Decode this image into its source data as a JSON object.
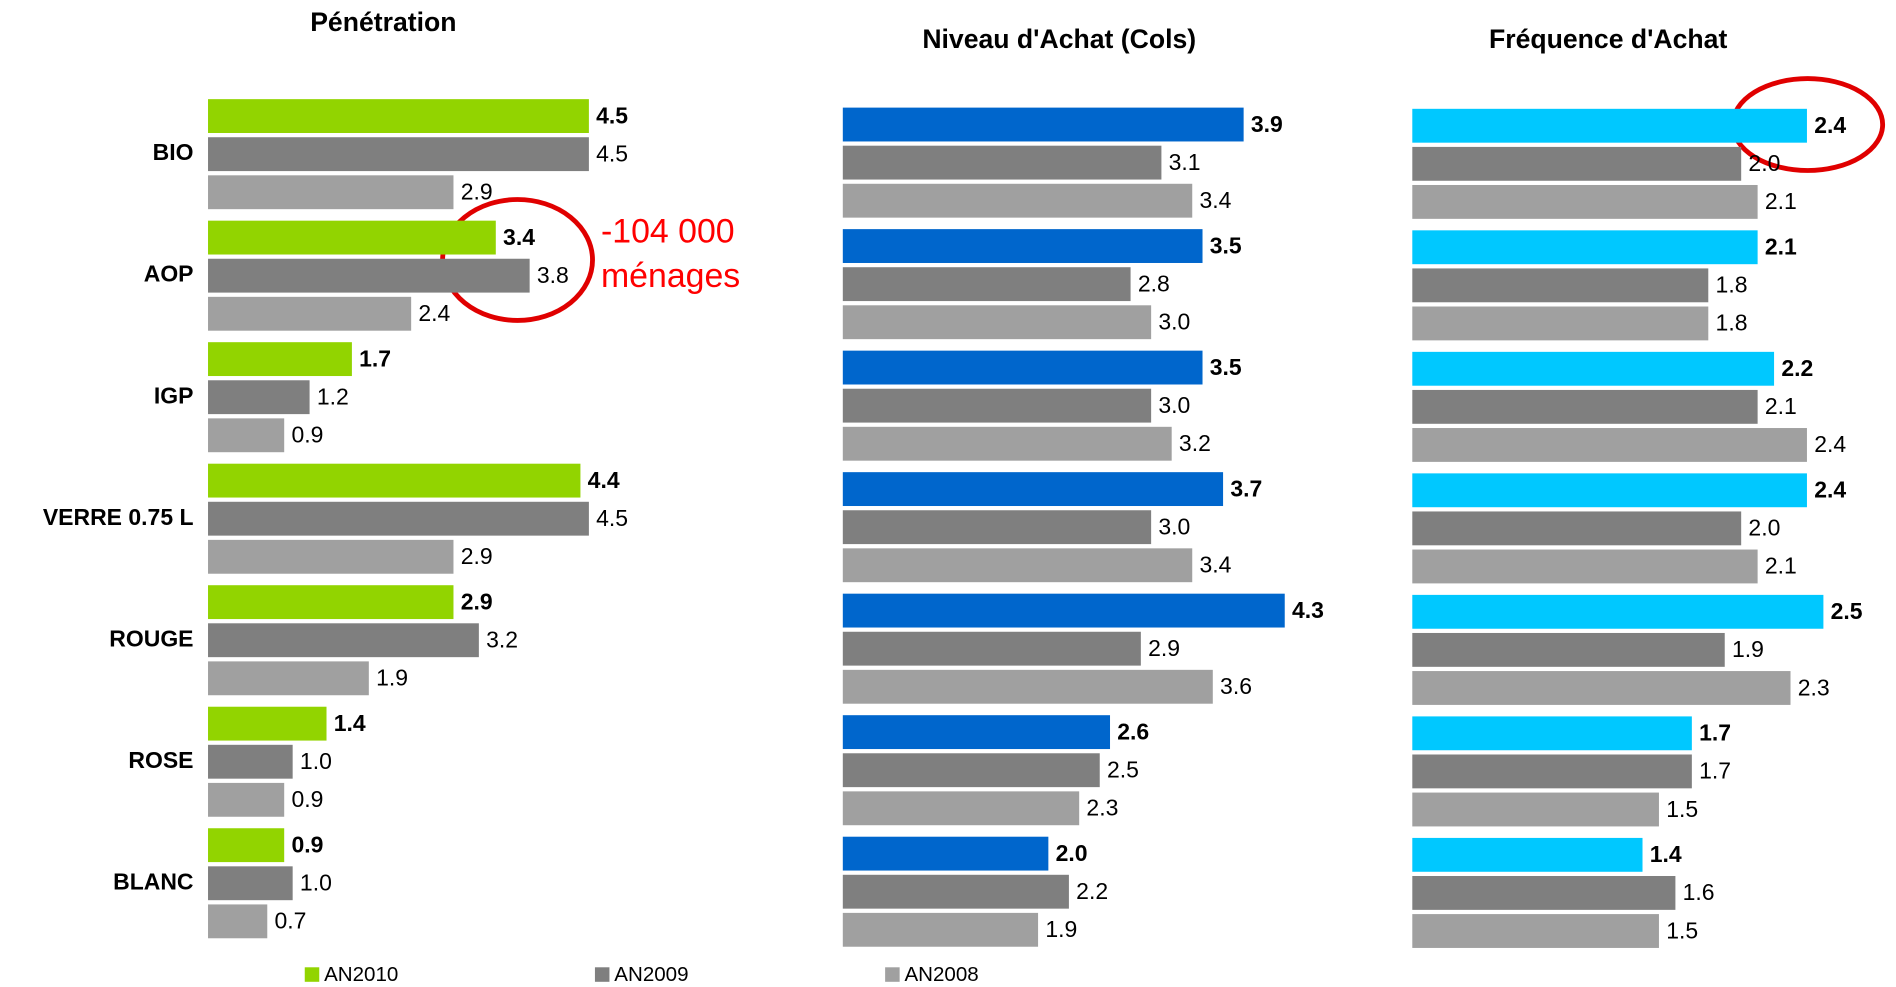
{
  "chart_data": [
    {
      "type": "bar",
      "orientation": "horizontal",
      "title": "Pénétration",
      "categories": [
        "BIO",
        "AOP",
        "IGP",
        "VERRE 0.75 L",
        "ROUGE",
        "ROSE",
        "BLANC"
      ],
      "xlim": [
        0,
        6
      ],
      "annotations": [
        "-104 000",
        "ménages"
      ],
      "series": [
        {
          "name": "AN2010",
          "color": "#92d400",
          "values": [
            4.5,
            3.4,
            1.7,
            4.4,
            2.9,
            1.4,
            0.9
          ],
          "value_labels": [
            "4.5",
            "3.4",
            "1.7",
            "4.4",
            "2.9",
            "1.4",
            "0.9"
          ]
        },
        {
          "name": "AN2009",
          "color": "#7f7f7f",
          "values": [
            4.5,
            3.8,
            1.2,
            4.5,
            3.2,
            1.0,
            1.0
          ],
          "value_labels": [
            "4.5",
            "3.8",
            "1.2",
            "4.5",
            "3.2",
            "1.0",
            "1.0"
          ]
        },
        {
          "name": "AN2008",
          "color": "#a0a0a0",
          "values": [
            2.9,
            2.4,
            0.9,
            2.9,
            1.9,
            0.9,
            0.7
          ],
          "value_labels": [
            "2.9",
            "2.4",
            "0.9",
            "2.9",
            "1.9",
            "0.9",
            "0.7"
          ]
        }
      ]
    },
    {
      "type": "bar",
      "orientation": "horizontal",
      "title": "Niveau d'Achat (Cols)",
      "xlim": [
        0,
        5
      ],
      "series": [
        {
          "color": "#0066cc",
          "values": [
            3.9,
            3.5,
            3.5,
            3.7,
            4.3,
            2.6,
            2.0
          ],
          "value_labels": [
            "3.9",
            "3.5",
            "3.5",
            "3.7",
            "4.3",
            "2.6",
            "2.0"
          ]
        },
        {
          "color": "#7f7f7f",
          "values": [
            3.1,
            2.8,
            3.0,
            3.0,
            2.9,
            2.5,
            2.2
          ],
          "value_labels": [
            "3.1",
            "2.8",
            "3.0",
            "3.0",
            "2.9",
            "2.5",
            "2.2"
          ]
        },
        {
          "color": "#a0a0a0",
          "values": [
            3.4,
            3.0,
            3.2,
            3.4,
            3.6,
            2.3,
            1.9
          ],
          "value_labels": [
            "3.4",
            "3.0",
            "3.2",
            "3.4",
            "3.6",
            "2.3",
            "1.9"
          ]
        }
      ]
    },
    {
      "type": "bar",
      "orientation": "horizontal",
      "title": "Fréquence d'Achat",
      "xlim": [
        0,
        3
      ],
      "series": [
        {
          "color": "#00c8ff",
          "values": [
            2.4,
            2.1,
            2.2,
            2.4,
            2.5,
            1.7,
            1.4
          ],
          "value_labels": [
            "2.4",
            "2.1",
            "2.2",
            "2.4",
            "2.5",
            "1.7",
            "1.4"
          ]
        },
        {
          "color": "#7f7f7f",
          "values": [
            2.0,
            1.8,
            2.1,
            2.0,
            1.9,
            1.7,
            1.6
          ],
          "value_labels": [
            "2.0",
            "1.8",
            "2.1",
            "2.0",
            "1.9",
            "1.7",
            "1.6"
          ]
        },
        {
          "color": "#a0a0a0",
          "values": [
            2.1,
            1.8,
            2.4,
            2.1,
            2.3,
            1.5,
            1.5
          ],
          "value_labels": [
            "2.1",
            "1.8",
            "2.4",
            "2.1",
            "2.3",
            "1.5",
            "1.5"
          ]
        }
      ]
    }
  ]
}
